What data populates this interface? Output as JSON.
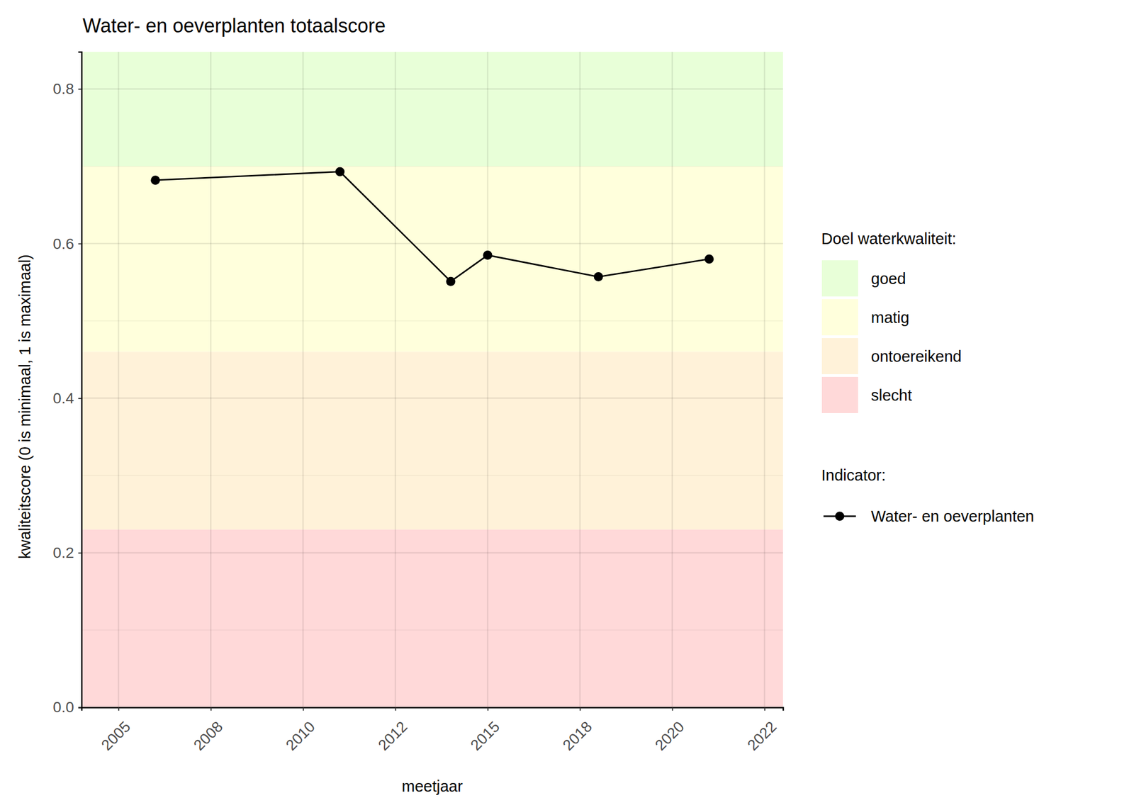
{
  "chart_data": {
    "type": "line",
    "title": "Water- en oeverplanten totaalscore",
    "x_label": "meetjaar",
    "y_label": "kwaliteitscore (0 is minimaal, 1 is maximaal)",
    "bands_title": "Doel waterkwaliteit:",
    "legend_title": "Indicator:",
    "bands": [
      {
        "name": "goed",
        "color": "#e8ffd8",
        "from": 0.7,
        "to": 0.848
      },
      {
        "name": "matig",
        "color": "#ffffdc",
        "from": 0.46,
        "to": 0.7
      },
      {
        "name": "ontoereikend",
        "color": "#fff2d9",
        "from": 0.23,
        "to": 0.46
      },
      {
        "name": "slecht",
        "color": "#ffd9d9",
        "from": 0,
        "to": 0.23
      }
    ],
    "x": [
      2006,
      2011,
      2014,
      2015,
      2018,
      2021
    ],
    "series": [
      {
        "name": "Water- en oeverplanten",
        "color": "#000000",
        "marker": "circle",
        "values": [
          0.682,
          0.693,
          0.551,
          0.585,
          0.557,
          0.58
        ]
      }
    ],
    "xlim": [
      2004.0,
      2023.0
    ],
    "xticks": [
      2005,
      {
        "value": 2007.5,
        "label": "2008"
      },
      2010,
      {
        "value": 2012.5,
        "label": "2012"
      },
      2015,
      {
        "value": 2017.5,
        "label": "2018"
      },
      2020,
      {
        "value": 2022.5,
        "label": "2022"
      }
    ],
    "ylim": [
      0,
      0.848
    ],
    "yticks": [
      {
        "value": 0,
        "label": "0.0"
      },
      0.2,
      0.4,
      0.6,
      0.8
    ],
    "grid": true
  }
}
